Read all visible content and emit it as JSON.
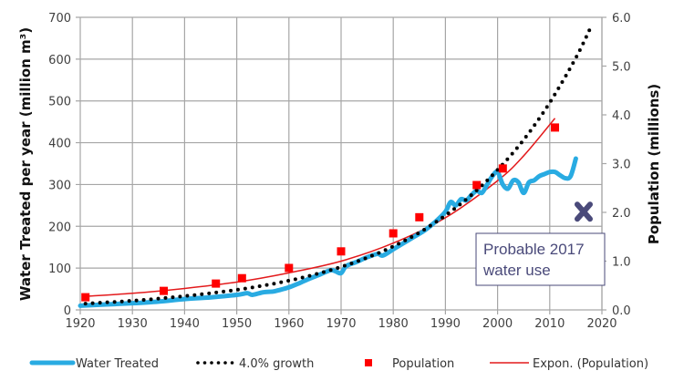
{
  "chart_data": {
    "type": "line",
    "title": "",
    "xlabel": "",
    "ylabel": "Water Treated per year (million m³)",
    "ylabel_right": "Population (millions)",
    "xlim": [
      1920,
      2020
    ],
    "ylim": [
      0,
      700
    ],
    "ylim_right": [
      0,
      6.0
    ],
    "x_ticks": [
      "1920",
      "1930",
      "1940",
      "1950",
      "1960",
      "1970",
      "1980",
      "1990",
      "2000",
      "2010",
      "2020"
    ],
    "y_ticks": [
      "0",
      "100",
      "200",
      "300",
      "400",
      "500",
      "600",
      "700"
    ],
    "y_ticks_right": [
      "0.0",
      "1.0",
      "2.0",
      "3.0",
      "4.0",
      "5.0",
      "6.0"
    ],
    "grid": true,
    "legend_position": "bottom",
    "series": [
      {
        "name": "Water Treated",
        "axis": "left",
        "style": "thick-line",
        "color": "#29abe2",
        "x": [
          1920,
          1925,
          1930,
          1935,
          1940,
          1945,
          1950,
          1952,
          1953,
          1955,
          1957,
          1958,
          1960,
          1962,
          1964,
          1966,
          1968,
          1969,
          1970,
          1971,
          1973,
          1975,
          1977,
          1978,
          1980,
          1982,
          1984,
          1986,
          1988,
          1990,
          1991,
          1992,
          1993,
          1994,
          1995,
          1996,
          1997,
          1998,
          1999,
          2000,
          2001,
          2002,
          2003,
          2004,
          2005,
          2006,
          2007,
          2008,
          2009,
          2010,
          2011,
          2012,
          2013,
          2014,
          2015
        ],
        "values": [
          10,
          13,
          16,
          20,
          26,
          30,
          36,
          40,
          36,
          42,
          44,
          47,
          54,
          64,
          75,
          85,
          95,
          92,
          88,
          105,
          115,
          126,
          134,
          130,
          145,
          160,
          175,
          190,
          210,
          235,
          258,
          250,
          265,
          262,
          275,
          285,
          280,
          300,
          320,
          330,
          300,
          290,
          310,
          305,
          280,
          305,
          310,
          320,
          325,
          330,
          330,
          322,
          315,
          320,
          362
        ]
      },
      {
        "name": "4.0% growth",
        "axis": "left",
        "style": "dotted",
        "color": "#000000",
        "x": [
          1921,
          1925,
          1930,
          1935,
          1940,
          1945,
          1950,
          1955,
          1960,
          1965,
          1970,
          1975,
          1980,
          1985,
          1990,
          1995,
          2000,
          2005,
          2010,
          2015,
          2018
        ],
        "values": [
          15,
          18,
          22,
          27,
          33,
          40,
          48,
          58,
          70,
          85,
          103,
          125,
          152,
          185,
          226,
          275,
          335,
          407,
          496,
          603,
          680
        ]
      },
      {
        "name": "Population",
        "axis": "right",
        "style": "square-marker",
        "color": "#ff0000",
        "x": [
          1921,
          1936,
          1946,
          1951,
          1960,
          1970,
          1980,
          1985,
          1996,
          2001,
          2011
        ],
        "values": [
          0.26,
          0.39,
          0.54,
          0.65,
          0.86,
          1.2,
          1.57,
          1.9,
          2.56,
          2.9,
          3.74
        ]
      },
      {
        "name": "Expon. (Population)",
        "axis": "right",
        "style": "thin-line",
        "color": "#e31a1c",
        "x": [
          1921,
          1930,
          1940,
          1950,
          1960,
          1970,
          1980,
          1990,
          2000,
          2005,
          2011
        ],
        "values": [
          0.28,
          0.34,
          0.44,
          0.57,
          0.76,
          1.0,
          1.37,
          1.89,
          2.65,
          3.16,
          3.93
        ]
      }
    ],
    "annotations": [
      {
        "type": "x-marker",
        "label": "Probable 2017 water use",
        "x": 2016.5,
        "value": 235,
        "axis": "left",
        "color": "#4a4a7a"
      }
    ]
  },
  "annotation_box": {
    "line1": "Probable 2017",
    "line2": "water use"
  },
  "legend": [
    {
      "label": "Water Treated"
    },
    {
      "label": "4.0% growth"
    },
    {
      "label": "Population"
    },
    {
      "label": "Expon. (Population)"
    }
  ]
}
